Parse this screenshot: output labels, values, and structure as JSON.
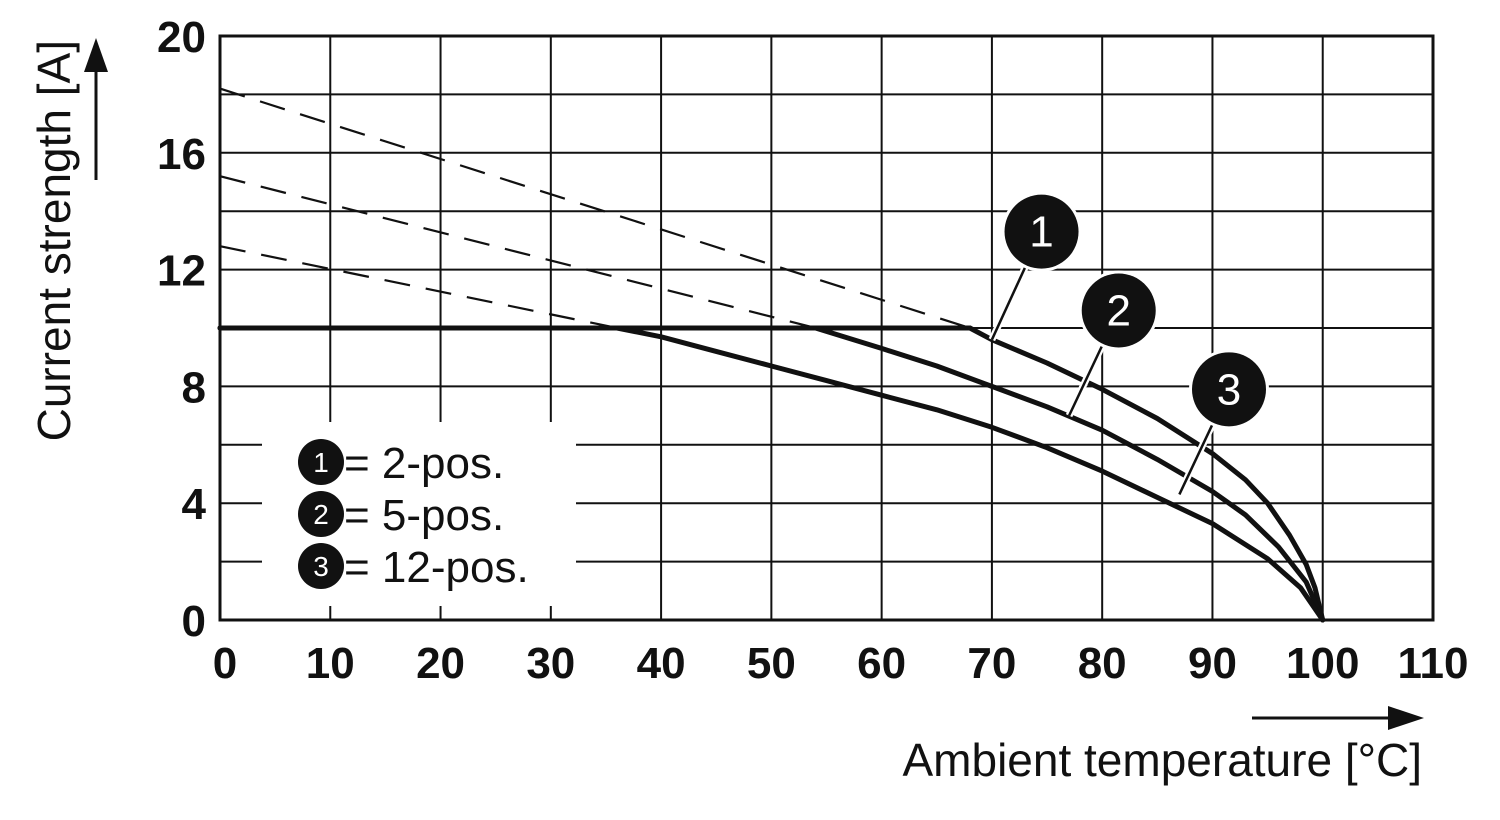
{
  "colors": {
    "ink": "#111111",
    "grid": "#111111",
    "background": "#ffffff",
    "legend_box": "#ffffff"
  },
  "chart_data": {
    "type": "line",
    "xlabel": "Ambient temperature [°C]",
    "ylabel": "Current strength [A]",
    "xlim": [
      0,
      110
    ],
    "ylim": [
      0,
      20
    ],
    "x_ticks": [
      0,
      10,
      20,
      30,
      40,
      50,
      60,
      70,
      80,
      90,
      100,
      110
    ],
    "y_ticks": [
      0,
      4,
      8,
      12,
      16,
      20
    ],
    "x_tick_labels": [
      "0",
      "10",
      "20",
      "30",
      "40",
      "50",
      "60",
      "70",
      "80",
      "90",
      "100",
      "110"
    ],
    "y_tick_labels": [
      "0",
      "4",
      "8",
      "12",
      "16",
      "20"
    ],
    "x_grid_step": 10,
    "y_grid_step": 2,
    "grid": true,
    "legend_position": "bottom-left",
    "plateau_current": 10,
    "series": [
      {
        "name": "2-pos.",
        "badge": "1",
        "dashed": [
          [
            0,
            18.2
          ],
          [
            68,
            10.0
          ]
        ],
        "solid": [
          [
            68,
            10.0
          ],
          [
            70,
            9.6
          ],
          [
            75,
            8.8
          ],
          [
            80,
            7.9
          ],
          [
            85,
            6.9
          ],
          [
            90,
            5.7
          ],
          [
            93,
            4.8
          ],
          [
            95,
            4.0
          ],
          [
            97,
            2.9
          ],
          [
            98.5,
            1.9
          ],
          [
            99.3,
            1.1
          ],
          [
            100,
            0
          ]
        ],
        "callout_from": [
          70,
          9.6
        ],
        "callout_badge_at": [
          74.5,
          13.3
        ]
      },
      {
        "name": "5-pos.",
        "badge": "2",
        "dashed": [
          [
            0,
            15.2
          ],
          [
            54,
            10.0
          ]
        ],
        "solid": [
          [
            54,
            10.0
          ],
          [
            60,
            9.3
          ],
          [
            65,
            8.7
          ],
          [
            70,
            8.0
          ],
          [
            75,
            7.3
          ],
          [
            80,
            6.5
          ],
          [
            85,
            5.5
          ],
          [
            90,
            4.4
          ],
          [
            93,
            3.6
          ],
          [
            96,
            2.5
          ],
          [
            98.5,
            1.3
          ],
          [
            100,
            0
          ]
        ],
        "callout_from": [
          77,
          7.0
        ],
        "callout_badge_at": [
          81.5,
          10.6
        ]
      },
      {
        "name": "12-pos.",
        "badge": "3",
        "dashed": [
          [
            0,
            12.8
          ],
          [
            36,
            10.0
          ]
        ],
        "solid": [
          [
            36,
            10.0
          ],
          [
            40,
            9.7
          ],
          [
            45,
            9.2
          ],
          [
            50,
            8.7
          ],
          [
            55,
            8.2
          ],
          [
            60,
            7.7
          ],
          [
            65,
            7.2
          ],
          [
            70,
            6.6
          ],
          [
            75,
            5.9
          ],
          [
            80,
            5.1
          ],
          [
            85,
            4.2
          ],
          [
            90,
            3.3
          ],
          [
            95,
            2.1
          ],
          [
            98,
            1.1
          ],
          [
            100,
            0
          ]
        ],
        "callout_from": [
          87,
          4.3
        ],
        "callout_badge_at": [
          91.5,
          7.9
        ]
      }
    ],
    "legend": [
      {
        "badge": "1",
        "text": "= 2-pos."
      },
      {
        "badge": "2",
        "text": "= 5-pos."
      },
      {
        "badge": "3",
        "text": "= 12-pos."
      }
    ]
  }
}
